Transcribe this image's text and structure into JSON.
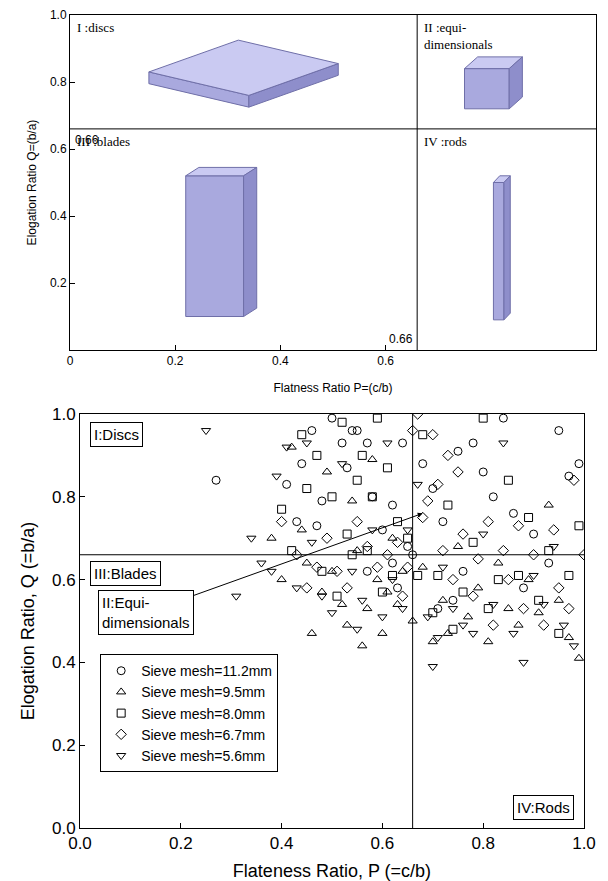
{
  "chart_data": [
    {
      "type": "diagram",
      "xlabel": "Flatness Ratio P=(c/b)",
      "ylabel": "Elogation Ratio Q=(b/a)",
      "xlim": [
        0,
        1
      ],
      "ylim": [
        0,
        1
      ],
      "xticks": [
        0,
        0.2,
        0.4,
        0.6
      ],
      "yticks": [
        0.2,
        0.4,
        0.6,
        0.8,
        {
          "value": 1,
          "label": "1.0"
        }
      ],
      "x_threshold": 0.66,
      "y_threshold": 0.66,
      "annotations": [
        "I :discs",
        "II :equi-dimensionals",
        "III :blades",
        "IV :rods"
      ],
      "color": "#a9a9de"
    },
    {
      "type": "scatter",
      "xlabel": "Flateness Ratio, P (=c/b)",
      "ylabel": "Elogation Ratio, Q (=b/a)",
      "xlim": [
        0,
        1
      ],
      "ylim": [
        0,
        1
      ],
      "xticks": [
        {
          "value": 0,
          "label": "0.0"
        },
        0.2,
        0.4,
        0.6,
        0.8,
        {
          "value": 1,
          "label": "1.0"
        }
      ],
      "yticks": [
        {
          "value": 0,
          "label": "0.0"
        },
        0.2,
        0.4,
        0.6,
        0.8,
        {
          "value": 1,
          "label": "1.0"
        }
      ],
      "x_threshold": 0.66,
      "y_threshold": 0.66,
      "annotations": [
        "I:Discs",
        "II:Equi-dimensionals",
        "III:Blades",
        "IV:Rods"
      ],
      "legend": "lower left",
      "series": [
        {
          "name": "Sieve mesh=11.2mm",
          "marker": "circle",
          "color": "#000000",
          "x": [
            0.27,
            0.41,
            0.43,
            0.44,
            0.46,
            0.48,
            0.5,
            0.52,
            0.53,
            0.54,
            0.55,
            0.57,
            0.58,
            0.6,
            0.62,
            0.63,
            0.64,
            0.65,
            0.66,
            0.68,
            0.7,
            0.71,
            0.72,
            0.75,
            0.76,
            0.78,
            0.8,
            0.82,
            0.84,
            0.86,
            0.88,
            0.9,
            0.93,
            0.95,
            0.97,
            0.99,
            0.57,
            0.47,
            0.62,
            0.74
          ],
          "values": [
            0.84,
            0.83,
            0.74,
            0.88,
            0.96,
            0.79,
            0.99,
            0.93,
            0.87,
            0.96,
            0.96,
            0.93,
            0.8,
            0.72,
            0.64,
            0.58,
            0.93,
            0.68,
            0.66,
            0.88,
            0.82,
            0.53,
            0.74,
            0.91,
            0.62,
            0.93,
            0.86,
            0.8,
            0.99,
            0.76,
            0.58,
            0.71,
            0.64,
            0.96,
            0.85,
            0.88,
            0.62,
            0.73,
            0.78,
            0.55
          ]
        },
        {
          "name": "Sieve mesh=9.5mm",
          "marker": "triangle-up",
          "color": "#000000",
          "x": [
            0.38,
            0.4,
            0.42,
            0.44,
            0.45,
            0.46,
            0.48,
            0.49,
            0.5,
            0.52,
            0.53,
            0.54,
            0.55,
            0.56,
            0.57,
            0.58,
            0.59,
            0.6,
            0.61,
            0.62,
            0.63,
            0.64,
            0.66,
            0.68,
            0.7,
            0.72,
            0.73,
            0.75,
            0.77,
            0.79,
            0.81,
            0.83,
            0.85,
            0.87,
            0.89,
            0.91,
            0.93,
            0.95,
            0.97,
            0.99
          ],
          "values": [
            0.7,
            0.6,
            0.92,
            0.72,
            0.64,
            0.47,
            0.57,
            0.86,
            0.62,
            0.54,
            0.49,
            0.79,
            0.67,
            0.44,
            0.53,
            0.89,
            0.6,
            0.47,
            0.57,
            0.7,
            0.54,
            0.62,
            0.5,
            0.63,
            0.45,
            0.55,
            0.47,
            0.68,
            0.51,
            0.58,
            0.45,
            0.64,
            0.53,
            0.49,
            0.6,
            0.52,
            0.78,
            0.55,
            0.46,
            0.41
          ]
        },
        {
          "name": "Sieve mesh=8.0mm",
          "marker": "square",
          "color": "#000000",
          "x": [
            0.4,
            0.42,
            0.44,
            0.45,
            0.47,
            0.48,
            0.5,
            0.51,
            0.52,
            0.53,
            0.55,
            0.56,
            0.57,
            0.58,
            0.59,
            0.6,
            0.62,
            0.63,
            0.65,
            0.67,
            0.68,
            0.7,
            0.71,
            0.73,
            0.74,
            0.76,
            0.78,
            0.8,
            0.81,
            0.83,
            0.85,
            0.87,
            0.89,
            0.91,
            0.93,
            0.95,
            0.97,
            0.99,
            0.61,
            0.54
          ],
          "values": [
            0.77,
            0.67,
            0.95,
            0.82,
            0.9,
            0.62,
            0.8,
            0.56,
            0.98,
            0.71,
            0.84,
            0.9,
            0.67,
            0.8,
            0.99,
            0.57,
            0.61,
            0.74,
            0.7,
            0.61,
            0.95,
            0.52,
            0.61,
            0.78,
            0.48,
            0.57,
            0.69,
            0.99,
            0.53,
            0.6,
            0.84,
            0.61,
            0.75,
            0.55,
            0.67,
            0.47,
            0.61,
            0.73,
            0.87,
            0.66
          ]
        },
        {
          "name": "Sieve mesh=6.7mm",
          "marker": "diamond",
          "color": "#000000",
          "x": [
            0.4,
            0.43,
            0.45,
            0.47,
            0.49,
            0.51,
            0.53,
            0.55,
            0.57,
            0.59,
            0.61,
            0.63,
            0.64,
            0.65,
            0.67,
            0.68,
            0.69,
            0.7,
            0.71,
            0.72,
            0.74,
            0.75,
            0.76,
            0.78,
            0.79,
            0.81,
            0.82,
            0.84,
            0.85,
            0.87,
            0.88,
            0.9,
            0.92,
            0.94,
            0.95,
            0.97,
            0.98,
            1.0,
            0.73,
            0.66
          ],
          "values": [
            0.74,
            0.66,
            0.58,
            0.63,
            0.7,
            0.62,
            0.58,
            0.74,
            0.68,
            0.63,
            0.66,
            0.69,
            0.56,
            0.63,
            1.0,
            0.75,
            0.79,
            0.95,
            0.83,
            0.67,
            0.6,
            0.86,
            0.71,
            0.56,
            0.65,
            0.74,
            0.49,
            0.67,
            0.6,
            0.73,
            0.53,
            0.66,
            0.49,
            0.72,
            0.58,
            0.53,
            0.84,
            0.66,
            0.9,
            0.96
          ]
        },
        {
          "name": "Sieve mesh=5.6mm",
          "marker": "triangle-down",
          "color": "#000000",
          "x": [
            0.25,
            0.31,
            0.34,
            0.36,
            0.38,
            0.39,
            0.41,
            0.43,
            0.45,
            0.46,
            0.48,
            0.5,
            0.52,
            0.54,
            0.56,
            0.58,
            0.6,
            0.61,
            0.62,
            0.64,
            0.65,
            0.67,
            0.69,
            0.71,
            0.72,
            0.74,
            0.76,
            0.78,
            0.8,
            0.82,
            0.84,
            0.86,
            0.88,
            0.9,
            0.92,
            0.94,
            0.96,
            0.98,
            0.7,
            0.55
          ],
          "values": [
            0.96,
            0.56,
            0.7,
            0.64,
            0.62,
            0.85,
            0.92,
            0.58,
            0.93,
            0.69,
            0.56,
            0.52,
            0.88,
            0.62,
            0.55,
            0.72,
            0.51,
            0.93,
            0.6,
            0.53,
            0.72,
            0.83,
            0.51,
            0.46,
            0.63,
            0.53,
            0.49,
            0.47,
            0.71,
            0.54,
            0.93,
            0.47,
            0.4,
            0.61,
            0.54,
            0.68,
            0.49,
            0.44,
            0.39,
            0.48
          ]
        }
      ]
    }
  ]
}
